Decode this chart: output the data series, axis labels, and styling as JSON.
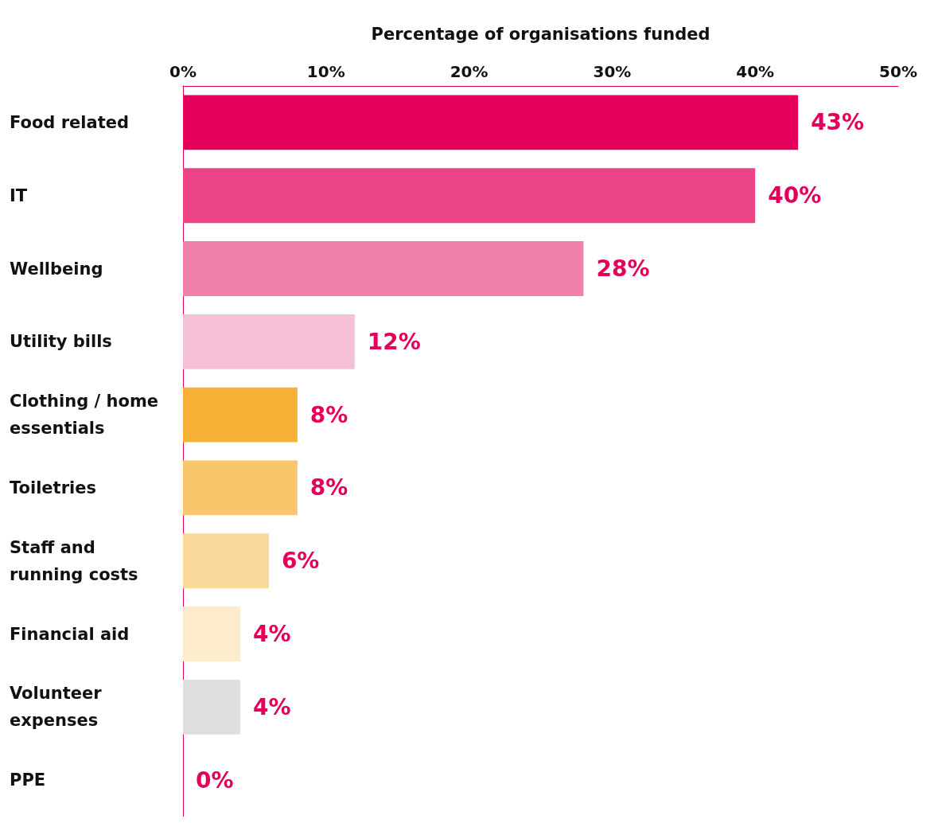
{
  "chart_data": {
    "type": "bar",
    "orientation": "horizontal",
    "xlabel": "Percentage of organisations funded",
    "categories": [
      "Food related",
      "IT",
      "Wellbeing",
      "Utility bills",
      "Clothing / home essentials",
      "Toiletries",
      "Staff and running costs",
      "Financial aid",
      "Volunteer expenses",
      "PPE"
    ],
    "values": [
      43,
      40,
      28,
      12,
      8,
      8,
      6,
      4,
      4,
      0
    ],
    "colors": [
      "#e4005a",
      "#eb4385",
      "#f07fac",
      "#f5bfd5",
      "#f8b136",
      "#f9c66c",
      "#fbd89b",
      "#fdebce",
      "#dedede",
      "#dedede"
    ],
    "value_labels": [
      "43%",
      "40%",
      "28%",
      "12%",
      "8%",
      "8%",
      "6%",
      "4%",
      "4%",
      "0%"
    ],
    "xlim": [
      0,
      50
    ],
    "xticks": [
      {
        "value": 0,
        "label": "0%"
      },
      {
        "value": 10,
        "label": "10%"
      },
      {
        "value": 20,
        "label": "20%"
      },
      {
        "value": 30,
        "label": "30%"
      },
      {
        "value": 40,
        "label": "40%"
      },
      {
        "value": 50,
        "label": "50%"
      }
    ],
    "grid": false
  }
}
